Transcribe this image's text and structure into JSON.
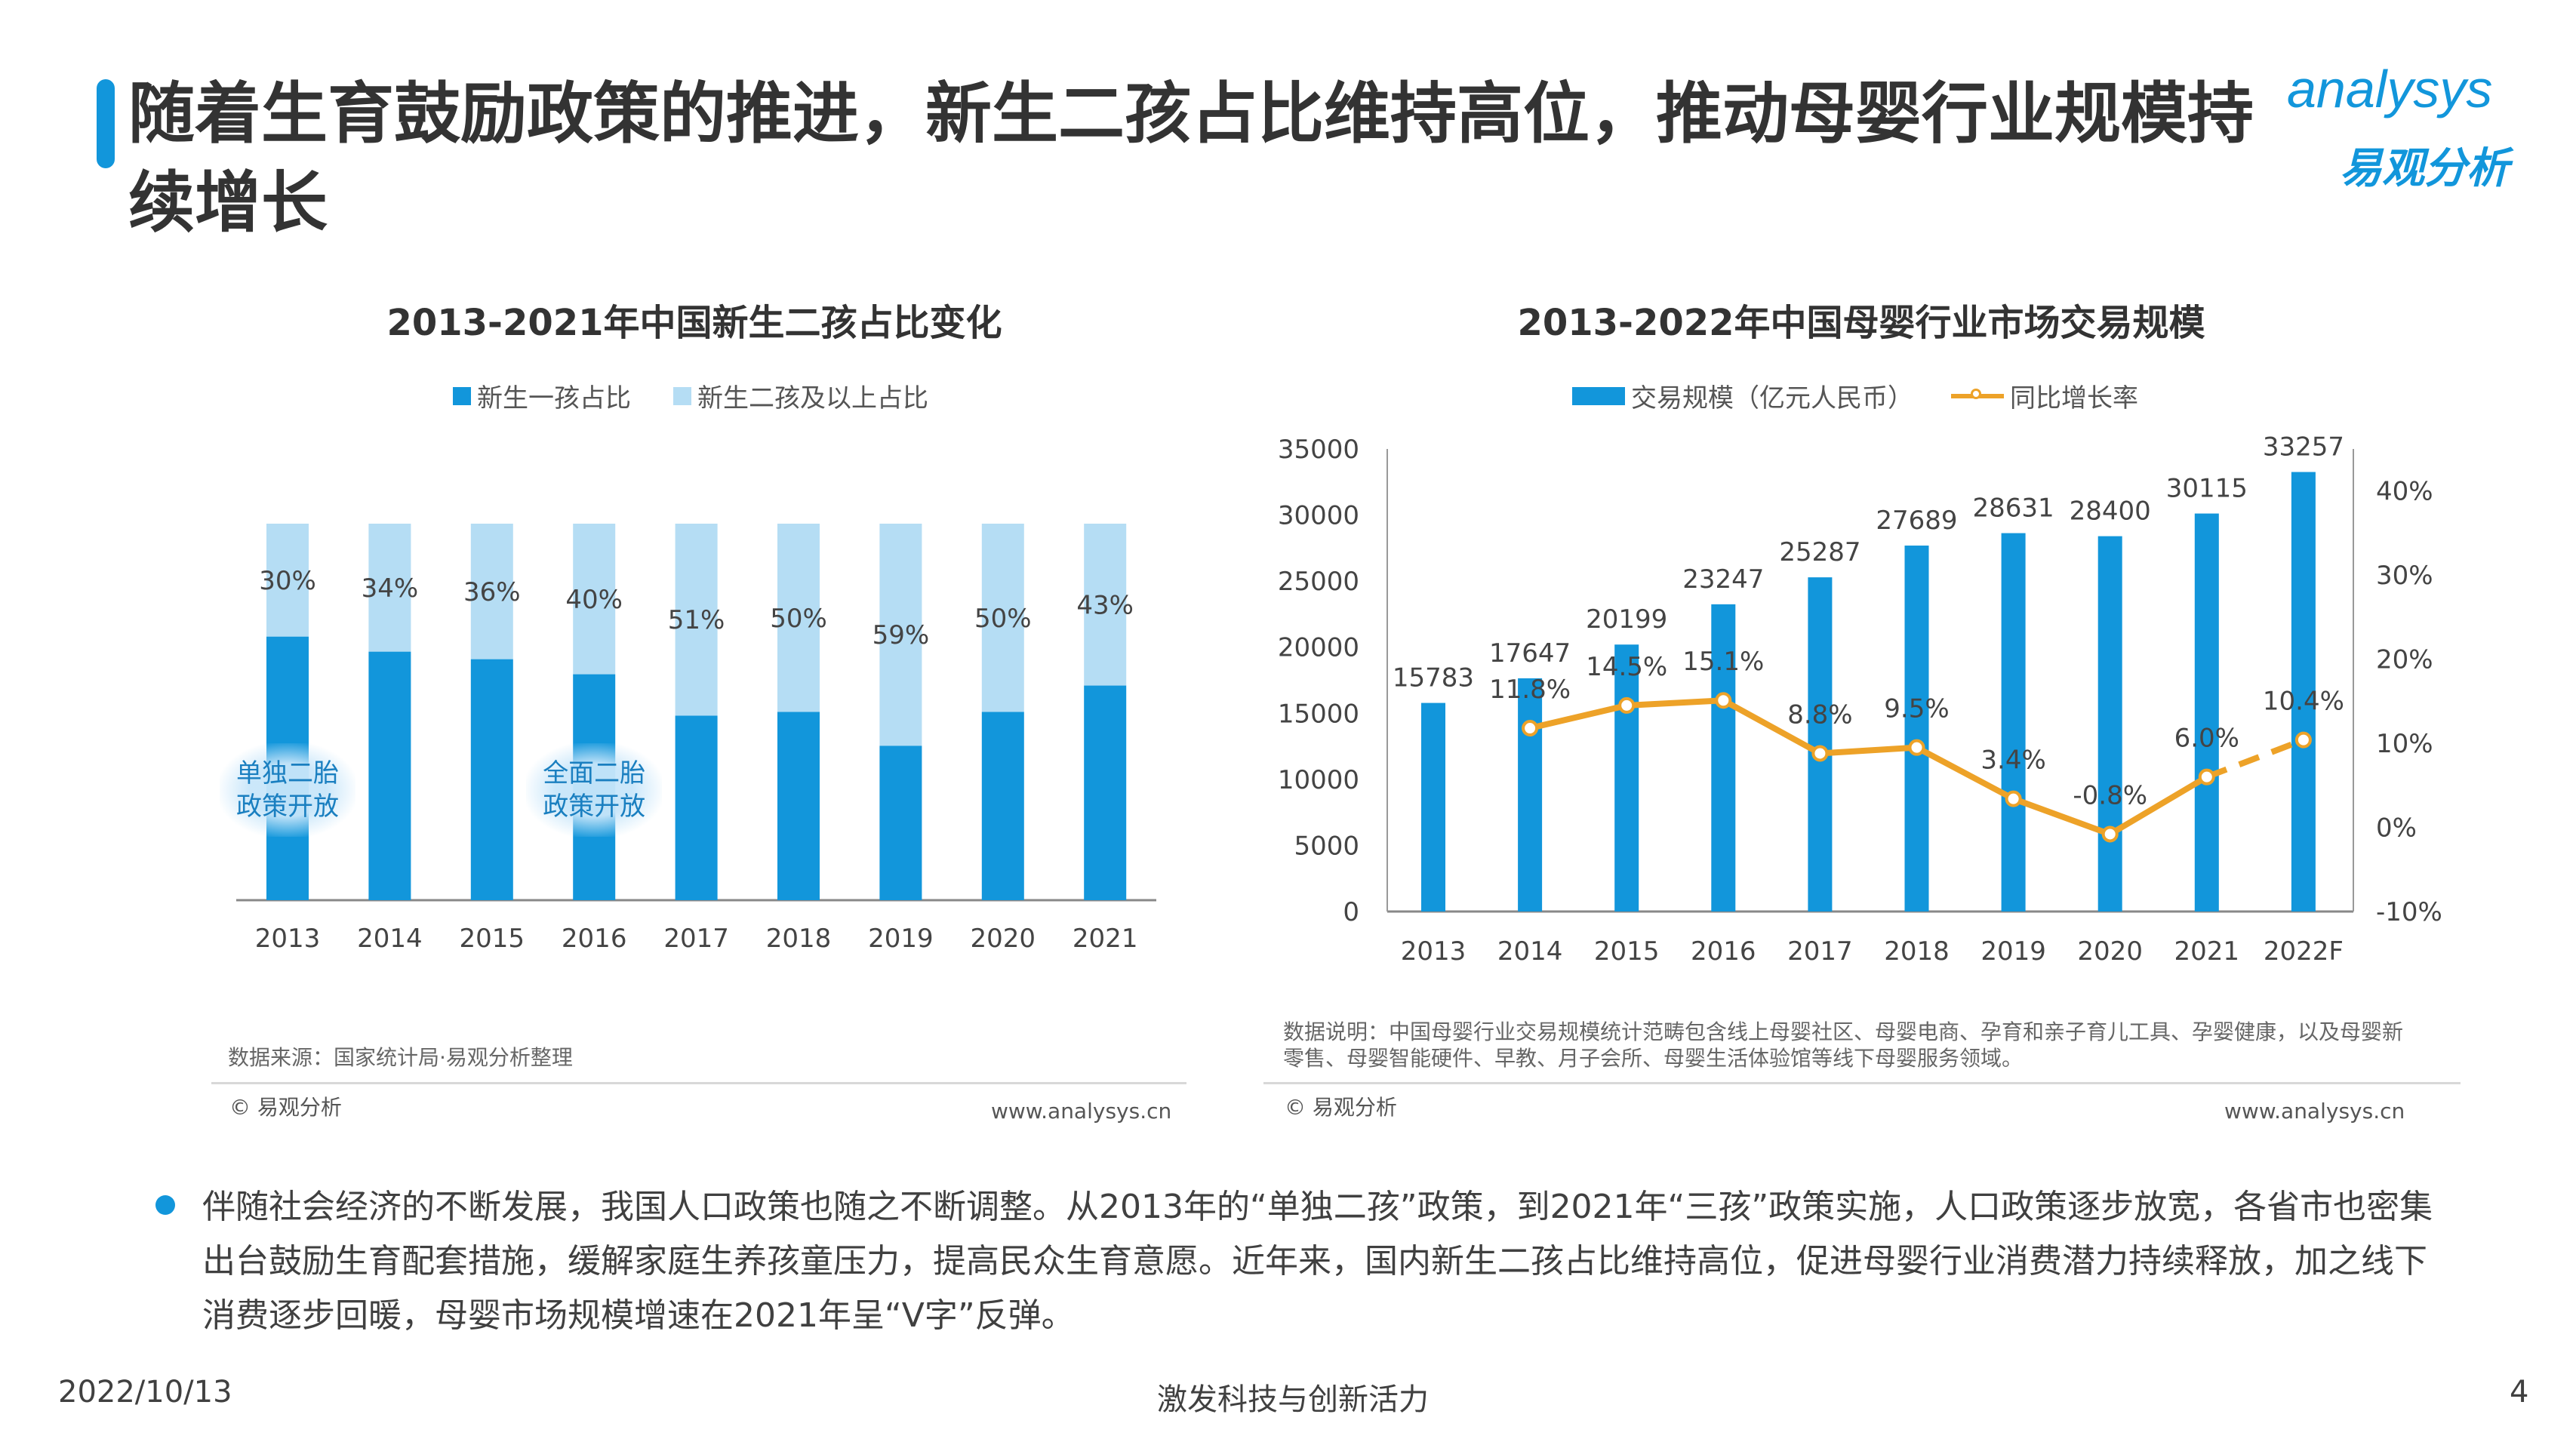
{
  "header": {
    "title": "随着生育鼓励政策的推进，新生二孩占比维持高位，推动母婴行业规模持续增长",
    "logo_en": "analysys",
    "logo_cn": "易观分析"
  },
  "colors": {
    "primary_blue": "#1296db",
    "light_blue": "#b5ddf4",
    "orange": "#eda228"
  },
  "left_panel": {
    "source": "数据来源：国家统计局·易观分析整理",
    "copyright": "© 易观分析",
    "website": "www.analysys.cn",
    "annotations": [
      {
        "year": "2013",
        "line1": "单独二胎",
        "line2": "政策开放"
      },
      {
        "year": "2016",
        "line1": "全面二胎",
        "line2": "政策开放"
      }
    ]
  },
  "right_panel": {
    "note_line1": "数据说明：中国母婴行业交易规模统计范畴包含线上母婴社区、母婴电商、孕育和亲子育儿工具、孕婴健康，以及母婴新",
    "note_line2": "零售、母婴智能硬件、早教、月子会所、母婴生活体验馆等线下母婴服务领域。",
    "copyright": "© 易观分析",
    "website": "www.analysys.cn"
  },
  "chart_data": [
    {
      "type": "bar",
      "stacked": true,
      "percent_stacked": true,
      "title": "2013-2021年中国新生二孩占比变化",
      "categories": [
        "2013",
        "2014",
        "2015",
        "2016",
        "2017",
        "2018",
        "2019",
        "2020",
        "2021"
      ],
      "series": [
        {
          "name": "新生一孩占比",
          "values": [
            70,
            66,
            64,
            60,
            49,
            50,
            41,
            50,
            57
          ],
          "color": "#1296db"
        },
        {
          "name": "新生二孩及以上占比",
          "values": [
            30,
            34,
            36,
            40,
            51,
            50,
            59,
            50,
            43
          ],
          "color": "#b5ddf4",
          "labels": [
            "30%",
            "34%",
            "36%",
            "40%",
            "51%",
            "50%",
            "59%",
            "50%",
            "43%"
          ]
        }
      ],
      "ylim": [
        0,
        100
      ],
      "grid": false,
      "legend": "top"
    },
    {
      "type": "bar+line",
      "title": "2013-2022年中国母婴行业市场交易规模",
      "categories": [
        "2013",
        "2014",
        "2015",
        "2016",
        "2017",
        "2018",
        "2019",
        "2020",
        "2021",
        "2022F"
      ],
      "series": [
        {
          "name": "交易规模（亿元人民币）",
          "axis": "left",
          "type": "bar",
          "values": [
            15783,
            17647,
            20199,
            23247,
            25287,
            27689,
            28631,
            28400,
            30115,
            33257
          ],
          "color": "#1296db"
        },
        {
          "name": "同比增长率",
          "axis": "right",
          "type": "line",
          "values": [
            null,
            11.8,
            14.5,
            15.1,
            8.8,
            9.5,
            3.4,
            -0.8,
            6.0,
            10.4
          ],
          "labels": [
            "",
            "11.8%",
            "14.5%",
            "15.1%",
            "8.8%",
            "9.5%",
            "3.4%",
            "-0.8%",
            "6.0%",
            "10.4%"
          ],
          "color": "#eda228",
          "dashed_from": "2021"
        }
      ],
      "yaxis_left": {
        "ticks": [
          "0",
          "5000",
          "10000",
          "15000",
          "20000",
          "25000",
          "30000",
          "35000"
        ],
        "range": [
          0,
          35000
        ]
      },
      "yaxis_right": {
        "ticks": [
          "-10%",
          "0%",
          "10%",
          "20%",
          "30%",
          "40%"
        ],
        "range": [
          -10,
          45
        ]
      },
      "grid": false,
      "legend": "top"
    }
  ],
  "body": {
    "paragraph": "伴随社会经济的不断发展，我国人口政策也随之不断调整。从2013年的“单独二孩”政策，到2021年“三孩”政策实施，人口政策逐步放宽，各省市也密集出台鼓励生育配套措施，缓解家庭生养孩童压力，提高民众生育意愿。近年来，国内新生二孩占比维持高位，促进母婴行业消费潜力持续释放，加之线下消费逐步回暖，母婴市场规模增速在2021年呈“V字”反弹。"
  },
  "footer": {
    "date": "2022/10/13",
    "slogan": "激发科技与创新活力",
    "page": "4"
  }
}
